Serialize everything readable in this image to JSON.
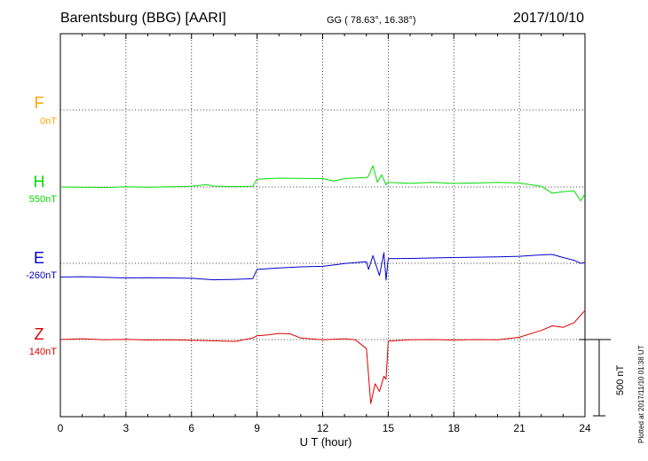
{
  "header": {
    "station": "Barentsburg (BBG)  [AARI]",
    "coords": "GG ( 78.63°,  16.38°)",
    "date": "2017/10/10"
  },
  "plotted_note": "Plotted at 2017/11/10 01:38 UT",
  "scale_label": "500 nT",
  "chart_data": {
    "type": "line",
    "xlabel": "U T (hour)",
    "xlim": [
      0,
      24
    ],
    "xticks": [
      "0",
      "3",
      "6",
      "9",
      "12",
      "15",
      "18",
      "21",
      "24"
    ],
    "grid": true,
    "scale_bar_nT": 500,
    "series": [
      {
        "name": "F",
        "baseline_label": "0nT",
        "color": "#ffa500",
        "x": [],
        "y": []
      },
      {
        "name": "H",
        "baseline_label": "550nT",
        "color": "#00dd00",
        "x": [
          0,
          1,
          2,
          3,
          4,
          5,
          6,
          6.7,
          7,
          8,
          8.8,
          9,
          10,
          11,
          12,
          12.5,
          13,
          14,
          14.1,
          14.3,
          14.5,
          14.7,
          14.9,
          15,
          16,
          17,
          18,
          19,
          20,
          21,
          21.5,
          22,
          22.5,
          23,
          23.5,
          23.8,
          24
        ],
        "y": [
          550,
          548,
          547,
          551,
          549,
          552,
          555,
          566,
          556,
          553,
          555,
          602,
          608,
          607,
          605,
          589,
          605,
          612,
          622,
          690,
          582,
          630,
          565,
          580,
          575,
          580,
          574,
          577,
          580,
          577,
          565,
          555,
          510,
          520,
          525,
          460,
          505
        ]
      },
      {
        "name": "E",
        "baseline_label": "-260nT",
        "color": "#0000cc",
        "x": [
          0,
          1,
          2,
          3,
          4,
          5,
          6,
          7,
          8,
          8.8,
          9,
          10,
          11,
          12,
          13,
          14,
          14.1,
          14.3,
          14.6,
          14.8,
          14.9,
          15,
          16,
          17,
          18,
          19,
          20,
          21,
          22,
          22.5,
          23,
          23.5,
          23.8,
          24
        ],
        "y": [
          -350,
          -348,
          -352,
          -356,
          -354,
          -356,
          -358,
          -368,
          -365,
          -361,
          -300,
          -290,
          -283,
          -280,
          -262,
          -250,
          -300,
          -210,
          -340,
          -190,
          -370,
          -230,
          -228,
          -225,
          -222,
          -220,
          -218,
          -214,
          -205,
          -202,
          -222,
          -240,
          -260,
          -255
        ]
      },
      {
        "name": "Z",
        "baseline_label": "140nT",
        "color": "#dd0000",
        "x": [
          0,
          1,
          2,
          3,
          4,
          5,
          6,
          7,
          8,
          8.8,
          9,
          9.5,
          10,
          10.5,
          11,
          12,
          13,
          13.5,
          14,
          14.2,
          14.4,
          14.6,
          14.8,
          14.9,
          15,
          16,
          17,
          18,
          19,
          20,
          21,
          22,
          22.5,
          23,
          23.5,
          23.8,
          24
        ],
        "y": [
          140,
          145,
          138,
          142,
          137,
          139,
          135,
          132,
          128,
          150,
          165,
          170,
          180,
          178,
          150,
          138,
          145,
          138,
          80,
          -280,
          -150,
          -200,
          -100,
          -120,
          130,
          138,
          140,
          137,
          140,
          138,
          155,
          200,
          230,
          220,
          250,
          300,
          330
        ]
      }
    ]
  }
}
